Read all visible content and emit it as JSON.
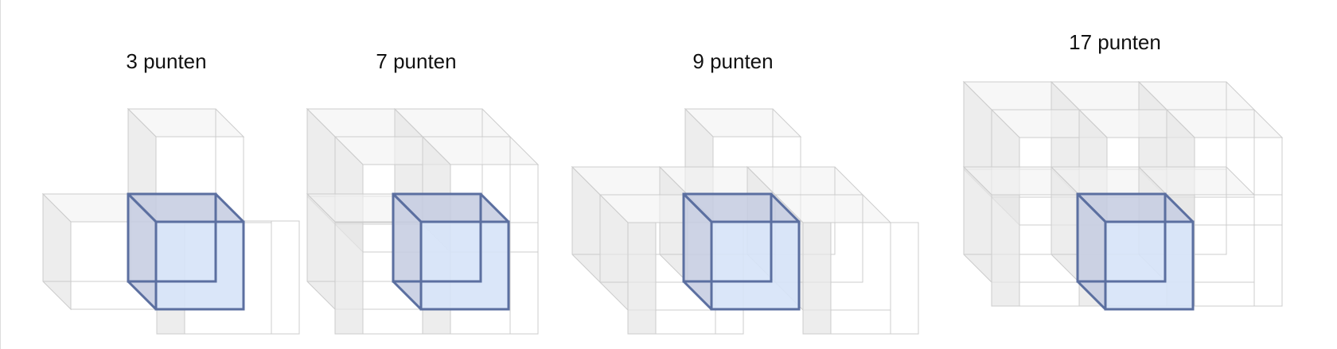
{
  "panels": [
    {
      "title": "3 punten"
    },
    {
      "title": "7 punten"
    },
    {
      "title": "9 punten"
    },
    {
      "title": "17 punten"
    }
  ],
  "colors": {
    "center_cube_stroke": "#5b6fa0",
    "center_cube_side": "#c4cbe0",
    "center_cube_front": "#d6e3f8",
    "neighbor_side_fill": "#e6e6e6",
    "neighbor_top_fill": "#f2f2f2",
    "neighbor_edge": "#cccccc"
  }
}
